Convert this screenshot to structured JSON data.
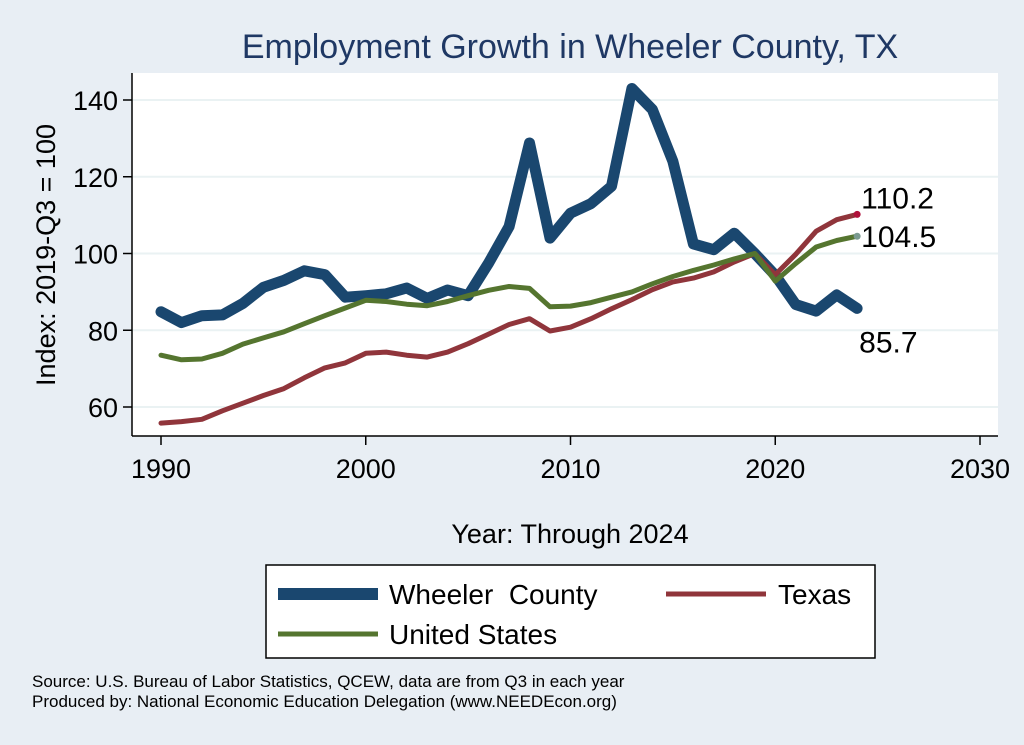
{
  "chart_data": {
    "type": "line",
    "title": "Employment Growth in Wheeler County, TX",
    "xlabel": "Year: Through 2024",
    "ylabel": "Index: 2019-Q3 = 100",
    "xlim": [
      1990,
      2030
    ],
    "ylim": [
      52,
      148
    ],
    "xticks": [
      1990,
      2000,
      2010,
      2020,
      2030
    ],
    "yticks": [
      60,
      80,
      100,
      120,
      140
    ],
    "grid": true,
    "legend_position": "bottom",
    "x": [
      1990,
      1991,
      1992,
      1993,
      1994,
      1995,
      1996,
      1997,
      1998,
      1999,
      2000,
      2001,
      2002,
      2003,
      2004,
      2005,
      2006,
      2007,
      2008,
      2009,
      2010,
      2011,
      2012,
      2013,
      2014,
      2015,
      2016,
      2017,
      2018,
      2019,
      2020,
      2021,
      2022,
      2023,
      2024
    ],
    "series": [
      {
        "name": "Wheeler  County",
        "color": "#1a476f",
        "values": [
          84.8,
          82.0,
          83.8,
          84.0,
          87.0,
          91.2,
          93.0,
          95.5,
          94.5,
          88.6,
          89.0,
          89.5,
          91.0,
          88.3,
          90.5,
          89.0,
          97.5,
          107.0,
          128.8,
          104.0,
          110.5,
          113.0,
          117.5,
          143.0,
          137.5,
          124.0,
          102.5,
          101.0,
          105.3,
          100.0,
          94.3,
          86.7,
          85.0,
          89.2,
          85.7
        ],
        "end_label": "85.7"
      },
      {
        "name": "Texas",
        "color": "#90353b",
        "values": [
          55.8,
          56.2,
          56.8,
          59.0,
          61.0,
          63.0,
          64.8,
          67.6,
          70.2,
          71.5,
          74.0,
          74.3,
          73.5,
          73.0,
          74.3,
          76.5,
          79.0,
          81.5,
          83.0,
          79.8,
          80.8,
          83.0,
          85.6,
          88.0,
          90.6,
          92.6,
          93.6,
          95.2,
          97.8,
          100.0,
          94.5,
          99.8,
          105.8,
          108.8,
          110.2
        ],
        "end_label": "110.2"
      },
      {
        "name": "United States",
        "color": "#55752f",
        "values": [
          73.5,
          72.3,
          72.5,
          74.0,
          76.4,
          78.0,
          79.6,
          81.7,
          83.8,
          85.8,
          87.8,
          87.5,
          86.8,
          86.4,
          87.5,
          89.0,
          90.4,
          91.4,
          90.9,
          86.1,
          86.3,
          87.2,
          88.6,
          90.0,
          92.1,
          94.0,
          95.6,
          97.0,
          98.6,
          100.0,
          92.8,
          97.4,
          101.7,
          103.4,
          104.5
        ],
        "end_label": "104.5"
      }
    ]
  },
  "source": {
    "line1": "Source: U.S. Bureau of Labor Statistics, QCEW, data are from Q3 in each year",
    "line2": "Produced by: National Economic Education Delegation (www.NEEDEcon.org)"
  }
}
